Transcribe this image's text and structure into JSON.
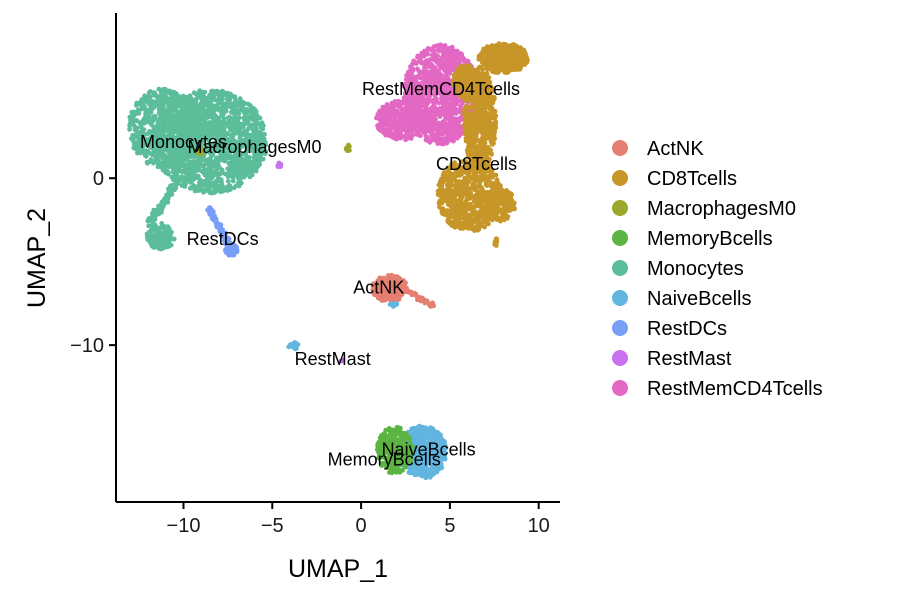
{
  "chart_data": {
    "type": "scatter",
    "xlabel": "UMAP_1",
    "ylabel": "UMAP_2",
    "xlim": [
      -13.8,
      11.2
    ],
    "ylim": [
      -19.4,
      9.9
    ],
    "x_ticks": [
      -10,
      -5,
      0,
      5,
      10
    ],
    "y_ticks": [
      -10,
      0
    ],
    "x_tick_labels": [
      "−10",
      "−5",
      "0",
      "5",
      "10"
    ],
    "y_tick_labels": [
      "−10",
      "0"
    ],
    "grid": false,
    "legend_position": "right",
    "series": [
      {
        "name": "ActNK",
        "color": "#E57F71"
      },
      {
        "name": "CD8Tcells",
        "color": "#C79628"
      },
      {
        "name": "MacrophagesM0",
        "color": "#99A82A"
      },
      {
        "name": "MemoryBcells",
        "color": "#5CB443"
      },
      {
        "name": "Monocytes",
        "color": "#5CBD9A"
      },
      {
        "name": "NaiveBcells",
        "color": "#61B5DF"
      },
      {
        "name": "RestDCs",
        "color": "#789EF7"
      },
      {
        "name": "RestMast",
        "color": "#C872F0"
      },
      {
        "name": "RestMemCD4Tcells",
        "color": "#E368C4"
      }
    ],
    "cluster_blobs": [
      {
        "series": "Monocytes",
        "shape": "ellipse",
        "cx": -8.5,
        "cy": 2.2,
        "rx": 3.2,
        "ry": 3.1,
        "density": 1400
      },
      {
        "series": "Monocytes",
        "shape": "ellipse",
        "cx": -11.1,
        "cy": 3.0,
        "rx": 2.0,
        "ry": 2.4,
        "density": 600
      },
      {
        "series": "Monocytes",
        "shape": "line",
        "x1": -10.5,
        "y1": -0.4,
        "x2": -11.9,
        "y2": -2.7,
        "width": 0.35,
        "density": 80
      },
      {
        "series": "Monocytes",
        "shape": "ellipse",
        "cx": -11.3,
        "cy": -3.5,
        "rx": 0.8,
        "ry": 0.8,
        "density": 120
      },
      {
        "series": "MacrophagesM0",
        "shape": "ellipse",
        "cx": -9.1,
        "cy": 1.6,
        "rx": 0.2,
        "ry": 0.2,
        "density": 15
      },
      {
        "series": "RestMast",
        "shape": "ellipse",
        "cx": -4.6,
        "cy": 0.8,
        "rx": 0.15,
        "ry": 0.15,
        "density": 8
      },
      {
        "series": "RestDCs",
        "shape": "line",
        "x1": -8.6,
        "y1": -1.8,
        "x2": -7.4,
        "y2": -4.0,
        "width": 0.25,
        "density": 90
      },
      {
        "series": "RestDCs",
        "shape": "ellipse",
        "cx": -7.3,
        "cy": -4.3,
        "rx": 0.35,
        "ry": 0.35,
        "density": 40
      },
      {
        "series": "RestMemCD4Tcells",
        "shape": "ellipse",
        "cx": 4.5,
        "cy": 5.0,
        "rx": 2.1,
        "ry": 3.0,
        "density": 1000
      },
      {
        "series": "RestMemCD4Tcells",
        "shape": "ellipse",
        "cx": 2.4,
        "cy": 3.5,
        "rx": 1.6,
        "ry": 1.2,
        "density": 300
      },
      {
        "series": "CD8Tcells",
        "shape": "ellipse",
        "cx": 8.0,
        "cy": 7.2,
        "rx": 1.4,
        "ry": 0.9,
        "density": 350
      },
      {
        "series": "CD8Tcells",
        "shape": "ellipse",
        "cx": 6.7,
        "cy": 3.5,
        "rx": 0.9,
        "ry": 3.2,
        "density": 600
      },
      {
        "series": "CD8Tcells",
        "shape": "ellipse",
        "cx": 6.1,
        "cy": -1.0,
        "rx": 1.8,
        "ry": 2.2,
        "density": 600
      },
      {
        "series": "CD8Tcells",
        "shape": "ellipse",
        "cx": 7.8,
        "cy": -1.6,
        "rx": 0.9,
        "ry": 1.0,
        "density": 150
      },
      {
        "series": "CD8Tcells",
        "shape": "ellipse",
        "cx": 5.9,
        "cy": 5.8,
        "rx": 0.7,
        "ry": 1.0,
        "density": 150
      },
      {
        "series": "CD8Tcells",
        "shape": "ellipse",
        "cx": 7.6,
        "cy": -3.8,
        "rx": 0.1,
        "ry": 0.3,
        "density": 10
      },
      {
        "series": "MacrophagesM0",
        "shape": "ellipse",
        "cx": -0.7,
        "cy": 1.8,
        "rx": 0.15,
        "ry": 0.2,
        "density": 10
      },
      {
        "series": "ActNK",
        "shape": "ellipse",
        "cx": 1.6,
        "cy": -6.6,
        "rx": 1.0,
        "ry": 0.8,
        "density": 220
      },
      {
        "series": "ActNK",
        "shape": "line",
        "x1": 2.3,
        "y1": -6.6,
        "x2": 4.0,
        "y2": -7.6,
        "width": 0.25,
        "density": 40
      },
      {
        "series": "NaiveBcells",
        "shape": "ellipse",
        "cx": 1.8,
        "cy": -7.6,
        "rx": 0.25,
        "ry": 0.15,
        "density": 8
      },
      {
        "series": "NaiveBcells",
        "shape": "ellipse",
        "cx": -3.8,
        "cy": -10.0,
        "rx": 0.4,
        "ry": 0.25,
        "density": 12
      },
      {
        "series": "RestMast",
        "shape": "ellipse",
        "cx": -1.1,
        "cy": -10.9,
        "rx": 0.1,
        "ry": 0.1,
        "density": 3
      },
      {
        "series": "NaiveBcells",
        "shape": "ellipse",
        "cx": 3.5,
        "cy": -16.4,
        "rx": 1.3,
        "ry": 1.6,
        "density": 450
      },
      {
        "series": "MemoryBcells",
        "shape": "ellipse",
        "cx": 1.9,
        "cy": -16.3,
        "rx": 1.0,
        "ry": 1.4,
        "density": 300
      }
    ],
    "cluster_labels": [
      {
        "text": "Monocytes",
        "x": -10.0,
        "y": 1.8
      },
      {
        "text": "MacrophagesM0",
        "x": -6.0,
        "y": 1.5
      },
      {
        "text": "RestDCs",
        "x": -7.8,
        "y": -4.0
      },
      {
        "text": "RestMemCD4Tcells",
        "x": 4.5,
        "y": 5.0
      },
      {
        "text": "CD8Tcells",
        "x": 6.5,
        "y": 0.5
      },
      {
        "text": "ActNK",
        "x": 1.0,
        "y": -6.9
      },
      {
        "text": "RestMast",
        "x": -1.6,
        "y": -11.2
      },
      {
        "text": "NaiveBcells",
        "x": 3.8,
        "y": -16.6
      },
      {
        "text": "MemoryBcells",
        "x": 1.3,
        "y": -17.2
      }
    ]
  }
}
